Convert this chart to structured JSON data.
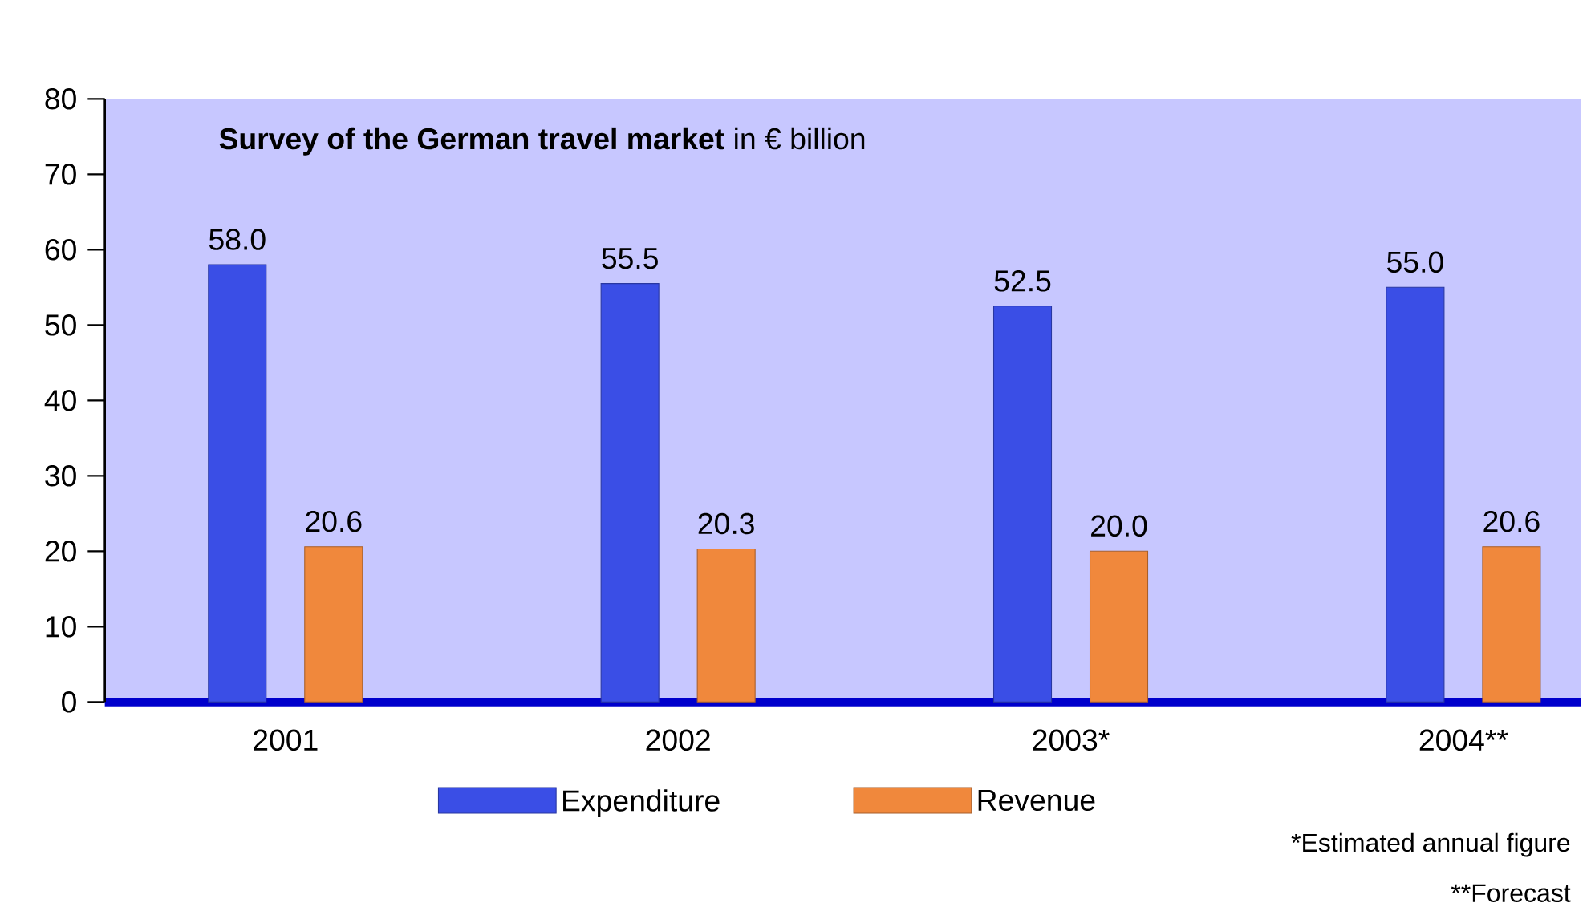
{
  "chart_data": {
    "type": "bar",
    "title": "**Survey of the German travel market** in € billion",
    "categories": [
      "2001",
      "2002",
      "2003*",
      "2004**"
    ],
    "series": [
      {
        "name": "Expenditure",
        "color": "#3a4ee6",
        "values": [
          58.0,
          55.5,
          52.5,
          55.0
        ],
        "value_labels": [
          "58.0",
          "55.5",
          "52.5",
          "55.0"
        ]
      },
      {
        "name": "Revenue",
        "color": "#f0883c",
        "values": [
          20.6,
          20.3,
          20.0,
          20.6
        ],
        "value_labels": [
          "20.6",
          "20.3",
          "20.0",
          "20.6"
        ]
      }
    ],
    "ylim": [
      0,
      80
    ],
    "yticks": [
      0,
      10,
      20,
      30,
      40,
      50,
      60,
      70,
      80
    ],
    "legend": "bottom",
    "grid": false,
    "annotations": [
      "*Estimated annual figure",
      "**Forecast"
    ]
  }
}
